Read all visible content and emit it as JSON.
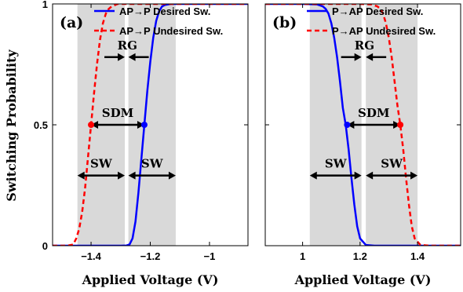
{
  "figure": {
    "ylabel": "Switching Probability"
  },
  "chart_data": [
    {
      "type": "line",
      "panel_label": "(a)",
      "xlabel": "Applied Voltage (V)",
      "ylabel": "Switching Probability",
      "xlim": [
        -1.53,
        -0.87
      ],
      "ylim": [
        0,
        1
      ],
      "xticks": [
        -1.4,
        -1.2,
        -1
      ],
      "xtick_labels": [
        "−1.4",
        "−1.2",
        "−1"
      ],
      "yticks": [
        0,
        0.5,
        1
      ],
      "ytick_labels": [
        "0",
        "0.5",
        "1"
      ],
      "legend_position": "top-right",
      "series": [
        {
          "name": "AP→P Desired Sw.",
          "color": "#0000ff",
          "style": "solid",
          "x": [
            -1.53,
            -1.3,
            -1.28,
            -1.27,
            -1.26,
            -1.25,
            -1.24,
            -1.23,
            -1.22,
            -1.21,
            -1.2,
            -1.19,
            -1.18,
            -1.17,
            -1.16,
            -1.15,
            -1.13,
            -1.1,
            -1.0,
            -0.87
          ],
          "y": [
            0,
            0,
            0.001,
            0.005,
            0.03,
            0.1,
            0.22,
            0.36,
            0.5,
            0.64,
            0.76,
            0.86,
            0.93,
            0.97,
            0.99,
            0.996,
            1,
            1,
            1,
            1
          ]
        },
        {
          "name": "AP→P Undesired Sw.",
          "color": "#ff0000",
          "style": "dashed",
          "x": [
            -1.53,
            -1.48,
            -1.46,
            -1.45,
            -1.44,
            -1.43,
            -1.42,
            -1.41,
            -1.4,
            -1.39,
            -1.38,
            -1.37,
            -1.36,
            -1.35,
            -1.34,
            -1.33,
            -1.31,
            -1.28,
            -1.2,
            -0.87
          ],
          "y": [
            0,
            0,
            0.005,
            0.03,
            0.07,
            0.14,
            0.24,
            0.37,
            0.5,
            0.63,
            0.75,
            0.85,
            0.92,
            0.96,
            0.98,
            0.99,
            1,
            1,
            1,
            1
          ]
        }
      ],
      "markers": [
        {
          "x": -1.4,
          "y": 0.5,
          "color": "#ff0000"
        },
        {
          "x": -1.22,
          "y": 0.5,
          "color": "#0000ff"
        }
      ],
      "shaded_regions": [
        {
          "x0": -1.446,
          "x1": -1.286
        },
        {
          "x0": -1.274,
          "x1": -1.114
        }
      ],
      "annotations": [
        {
          "label": "RG",
          "x0": -1.286,
          "x1": -1.274,
          "y": 0.78,
          "arrows": "inward"
        },
        {
          "label": "SDM",
          "x0": -1.4,
          "x1": -1.22,
          "y": 0.5,
          "arrows": "both"
        },
        {
          "label": "SW",
          "x0": -1.446,
          "x1": -1.286,
          "y": 0.29,
          "arrows": "both"
        },
        {
          "label": "SW",
          "x0": -1.274,
          "x1": -1.114,
          "y": 0.29,
          "arrows": "both"
        }
      ]
    },
    {
      "type": "line",
      "panel_label": "(b)",
      "xlabel": "Applied Voltage (V)",
      "ylabel": "Switching Probability",
      "xlim": [
        0.87,
        1.55
      ],
      "ylim": [
        0,
        1
      ],
      "xticks": [
        1,
        1.2,
        1.4
      ],
      "xtick_labels": [
        "1",
        "1.2",
        "1.4"
      ],
      "yticks": [
        0,
        0.5,
        1
      ],
      "ytick_labels": [
        "0",
        "0.5",
        "1"
      ],
      "legend_position": "top-right",
      "series": [
        {
          "name": "P→AP Desired Sw.",
          "color": "#0000ff",
          "style": "solid",
          "x": [
            0.87,
            1.0,
            1.05,
            1.07,
            1.08,
            1.09,
            1.1,
            1.11,
            1.12,
            1.13,
            1.14,
            1.15,
            1.16,
            1.17,
            1.18,
            1.19,
            1.2,
            1.22,
            1.25,
            1.55
          ],
          "y": [
            1,
            1,
            0.998,
            0.99,
            0.98,
            0.96,
            0.92,
            0.86,
            0.78,
            0.68,
            0.57,
            0.5,
            0.4,
            0.28,
            0.17,
            0.08,
            0.03,
            0.003,
            0,
            0
          ]
        },
        {
          "name": "P→AP Undesired Sw.",
          "color": "#ff0000",
          "style": "dashed",
          "x": [
            0.87,
            1.2,
            1.24,
            1.26,
            1.27,
            1.28,
            1.29,
            1.3,
            1.31,
            1.32,
            1.33,
            1.34,
            1.35,
            1.36,
            1.37,
            1.38,
            1.39,
            1.41,
            1.44,
            1.55
          ],
          "y": [
            1,
            1,
            0.998,
            0.99,
            0.98,
            0.96,
            0.92,
            0.86,
            0.78,
            0.68,
            0.58,
            0.5,
            0.4,
            0.28,
            0.17,
            0.08,
            0.03,
            0.003,
            0,
            0
          ]
        }
      ],
      "markers": [
        {
          "x": 1.155,
          "y": 0.5,
          "color": "#0000ff"
        },
        {
          "x": 1.34,
          "y": 0.5,
          "color": "#ff0000"
        }
      ],
      "shaded_regions": [
        {
          "x0": 1.025,
          "x1": 1.205
        },
        {
          "x0": 1.22,
          "x1": 1.4
        }
      ],
      "annotations": [
        {
          "label": "RG",
          "x0": 1.205,
          "x1": 1.22,
          "y": 0.78,
          "arrows": "inward"
        },
        {
          "label": "SDM",
          "x0": 1.155,
          "x1": 1.34,
          "y": 0.5,
          "arrows": "both"
        },
        {
          "label": "SW",
          "x0": 1.025,
          "x1": 1.205,
          "y": 0.29,
          "arrows": "both"
        },
        {
          "label": "SW",
          "x0": 1.22,
          "x1": 1.4,
          "y": 0.29,
          "arrows": "both"
        }
      ]
    }
  ]
}
